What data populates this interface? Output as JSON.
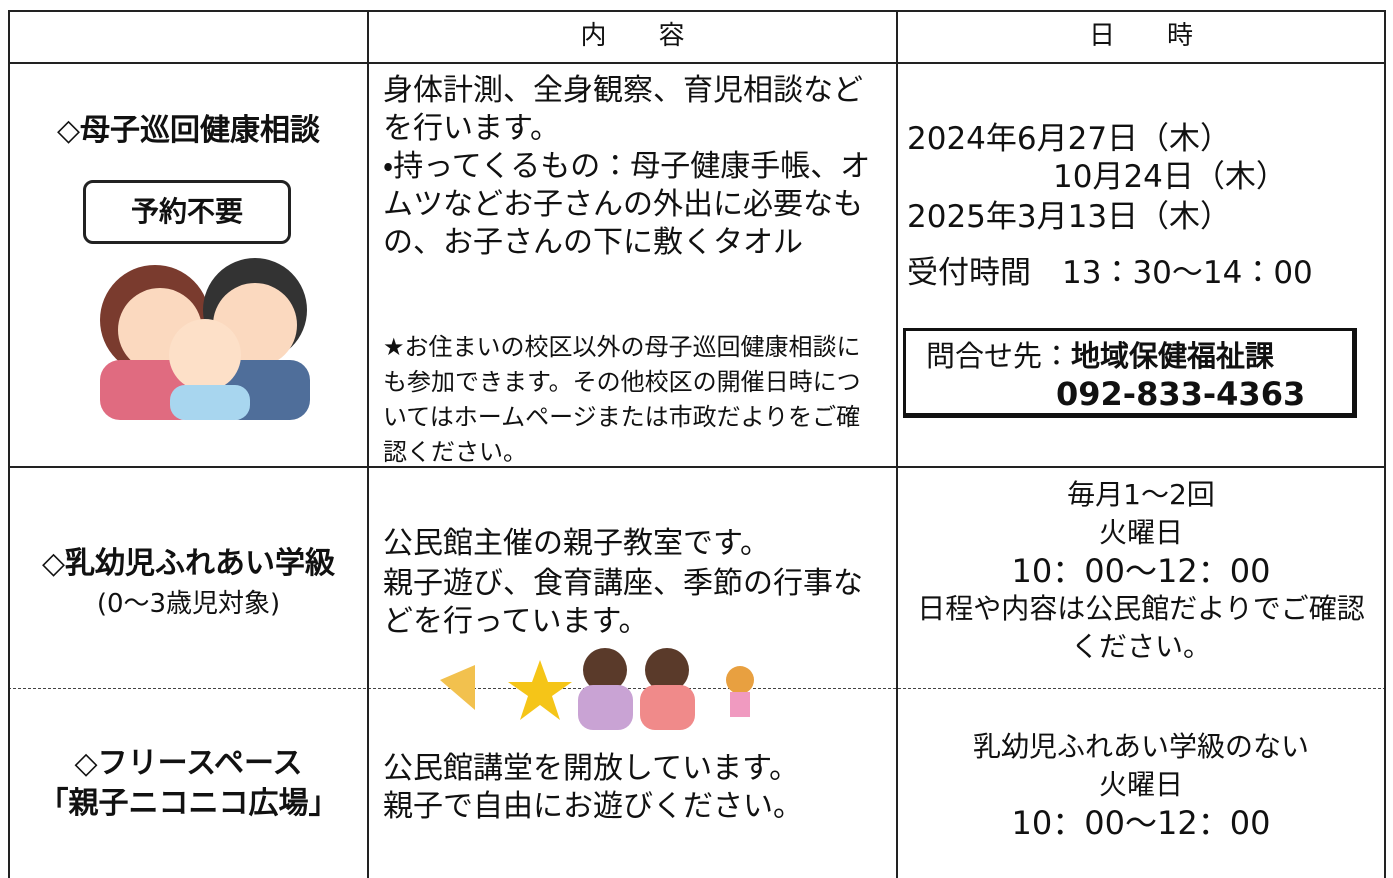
{
  "header": {
    "columns": [
      "",
      "内　　容",
      "日　　時"
    ]
  },
  "rows": [
    {
      "title": [
        "◇母子巡回健康相談"
      ],
      "badge": "予約不要",
      "content": [
        "身体計測、全身観察、育児相談などを行います。",
        "・持ってくるもの：母子健康手帳、オムツなどお子さんの外出に必要なもの、お子さんの下に敷くタオル"
      ],
      "note": "★お住まいの校区以外の母子巡回健康相談にも参加できます。その他校区の開催日時についてはホームページまたは市政だよりをご確認ください。",
      "schedule": [
        "2024年6月27日（木）",
        "10月24日（木）",
        "2025年3月13日（木）",
        "受付時間　13：30～14：00"
      ],
      "contact": {
        "label": "問合せ先：",
        "department": "地域保健福祉課",
        "phone": "092-833-4363"
      }
    },
    {
      "title": [
        "◇乳幼児ふれあい学級",
        "(0～3歳児対象)"
      ],
      "content": [
        "公民館主催の親子教室です。",
        "親子遊び、食育講座、季節の行事などを行っています。"
      ],
      "schedule": [
        "毎月1～2回",
        "火曜日",
        "10：00～12：00",
        "日程や内容は公民館だよりでご確認ください。"
      ]
    },
    {
      "title": [
        "◇フリースペース",
        "「親子ニコニコ広場」"
      ],
      "content": [
        "公民館講堂を開放しています。",
        "親子で自由にお遊びください。"
      ],
      "schedule": [
        "乳幼児ふれあい学級のない",
        "火曜日",
        "10：00～12：00"
      ]
    }
  ]
}
